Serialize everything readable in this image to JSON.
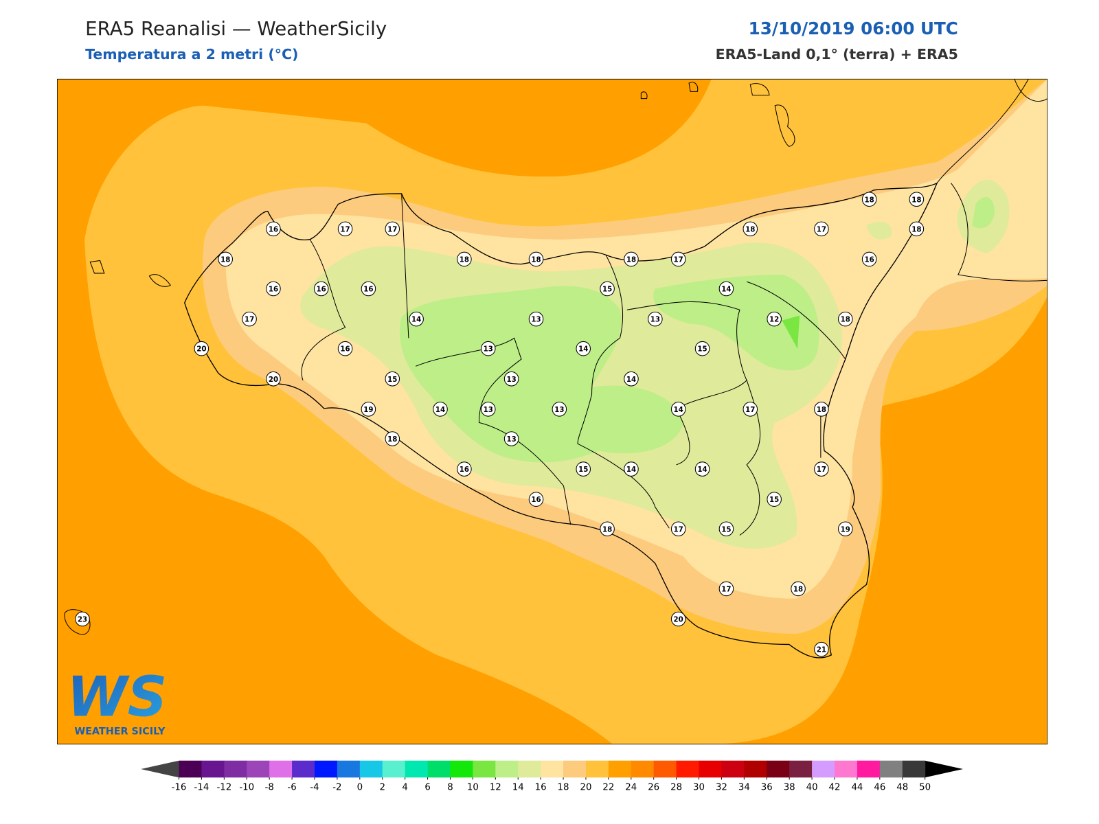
{
  "header": {
    "title": "ERA5 Reanalisi — WeatherSicily",
    "subtitle": "Temperatura a 2 metri (°C)",
    "datetime": "13/10/2019 06:00 UTC",
    "source": "ERA5-Land 0,1° (terra) + ERA5"
  },
  "stations": [
    16,
    17,
    17,
    18,
    16,
    16,
    16,
    17,
    20,
    20,
    16,
    15,
    14,
    18,
    18,
    13,
    13,
    13,
    13,
    13,
    14,
    19,
    18,
    13,
    16,
    16,
    15,
    14,
    18,
    14,
    15,
    18,
    17,
    13,
    14,
    14,
    15,
    14,
    18,
    17,
    18,
    18,
    18,
    16,
    12,
    18,
    17,
    18,
    17,
    14,
    15,
    19,
    17,
    15,
    17,
    18,
    20,
    21,
    23
  ],
  "colorbar": {
    "ticks": [
      -16,
      -14,
      -12,
      -10,
      -8,
      -6,
      -4,
      -2,
      0,
      2,
      4,
      6,
      8,
      10,
      12,
      14,
      16,
      18,
      20,
      22,
      24,
      26,
      28,
      30,
      32,
      34,
      36,
      38,
      40,
      42,
      44,
      46,
      48,
      50
    ],
    "colors": [
      "#4b0055",
      "#6a1590",
      "#7f2da3",
      "#9b45b8",
      "#e070e8",
      "#5a2ccc",
      "#0018ff",
      "#1878e0",
      "#16c8e6",
      "#59f0d0",
      "#00e8b0",
      "#00de6a",
      "#13e80a",
      "#79e641",
      "#bdee88",
      "#dfea9a",
      "#fee3a1",
      "#fdcb7d",
      "#ffc23a",
      "#ffa000",
      "#ff8a00",
      "#ff5a00",
      "#ff1a00",
      "#e80000",
      "#cc0010",
      "#b00000",
      "#7a0015",
      "#7a2040",
      "#d59cff",
      "#ff78d0",
      "#ff1aa0",
      "#808080",
      "#383838"
    ],
    "under_color": "#444444",
    "over_color": "#000000"
  },
  "logo": {
    "initials": "WS",
    "text": "WEATHER SICILY"
  }
}
